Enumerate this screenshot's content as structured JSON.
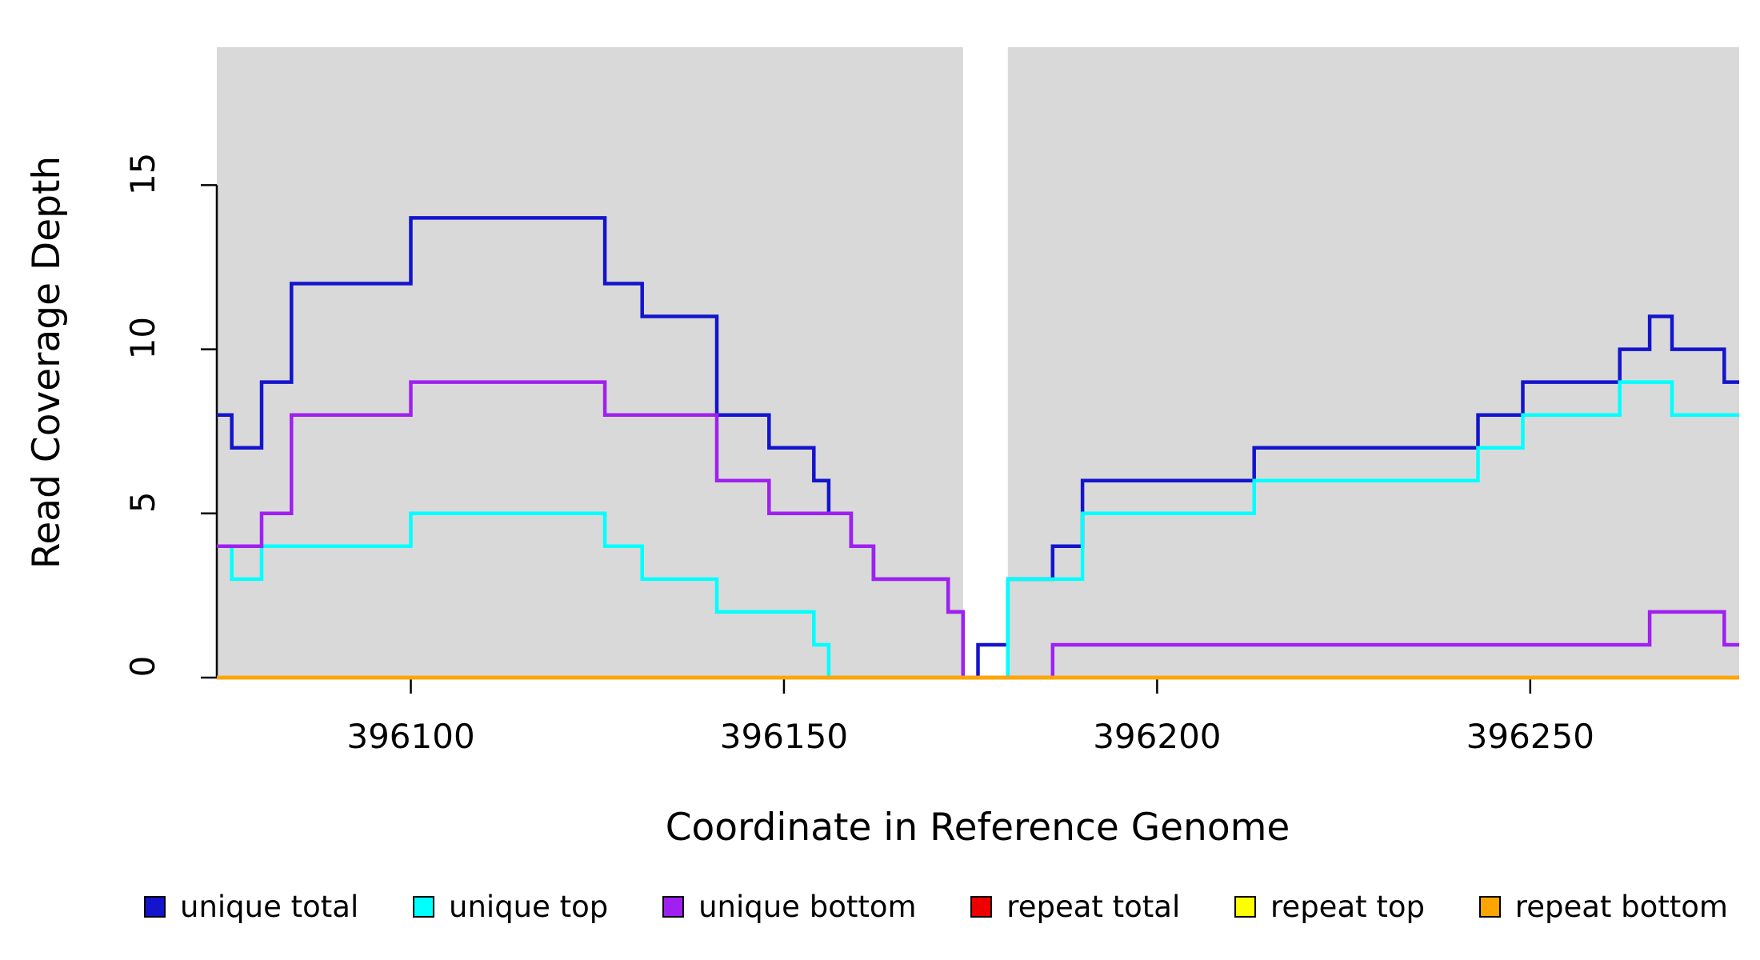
{
  "chart_data": {
    "type": "line",
    "subtype": "step-coverage-plot",
    "title": "",
    "xlabel": "Coordinate in Reference Genome",
    "ylabel": "Read Coverage Depth",
    "xlim": [
      396074,
      396278
    ],
    "ylim": [
      0,
      19.2
    ],
    "x_ticks": [
      396100,
      396150,
      396200,
      396250
    ],
    "y_ticks": [
      0,
      5,
      10,
      15
    ],
    "grid": false,
    "legend_position": "bottom",
    "background_color": "#ffffff",
    "shading_color": "#d9d9d9",
    "shaded_regions": [
      [
        396074,
        396174
      ],
      [
        396180,
        396278
      ]
    ],
    "series": [
      {
        "name": "unique total",
        "color": "#1414cc",
        "steps": [
          [
            396074,
            8
          ],
          [
            396076,
            7
          ],
          [
            396080,
            9
          ],
          [
            396084,
            12
          ],
          [
            396100,
            14
          ],
          [
            396126,
            12
          ],
          [
            396131,
            11
          ],
          [
            396141,
            8
          ],
          [
            396148,
            7
          ],
          [
            396154,
            6
          ],
          [
            396156,
            5
          ],
          [
            396159,
            4
          ],
          [
            396162,
            3
          ],
          [
            396172,
            2
          ],
          [
            396174,
            0
          ],
          [
            396176,
            1
          ],
          [
            396180,
            3
          ],
          [
            396186,
            4
          ],
          [
            396190,
            6
          ],
          [
            396213,
            7
          ],
          [
            396243,
            8
          ],
          [
            396249,
            9
          ],
          [
            396262,
            10
          ],
          [
            396266,
            11
          ],
          [
            396269,
            10
          ],
          [
            396276,
            9
          ]
        ]
      },
      {
        "name": "unique top",
        "color": "#00ffff",
        "steps": [
          [
            396074,
            4
          ],
          [
            396076,
            3
          ],
          [
            396080,
            4
          ],
          [
            396100,
            5
          ],
          [
            396126,
            4
          ],
          [
            396131,
            3
          ],
          [
            396141,
            2
          ],
          [
            396154,
            1
          ],
          [
            396156,
            0
          ],
          [
            396180,
            3
          ],
          [
            396190,
            5
          ],
          [
            396213,
            6
          ],
          [
            396243,
            7
          ],
          [
            396249,
            8
          ],
          [
            396262,
            9
          ],
          [
            396269,
            8
          ]
        ]
      },
      {
        "name": "unique bottom",
        "color": "#a020f0",
        "steps": [
          [
            396074,
            4
          ],
          [
            396080,
            5
          ],
          [
            396084,
            8
          ],
          [
            396100,
            9
          ],
          [
            396126,
            8
          ],
          [
            396141,
            6
          ],
          [
            396148,
            5
          ],
          [
            396159,
            4
          ],
          [
            396162,
            3
          ],
          [
            396172,
            2
          ],
          [
            396174,
            0
          ],
          [
            396186,
            1
          ],
          [
            396266,
            2
          ],
          [
            396276,
            1
          ]
        ]
      },
      {
        "name": "repeat total",
        "color": "#ee0000",
        "steps": [
          [
            396074,
            0
          ]
        ]
      },
      {
        "name": "repeat top",
        "color": "#ffff00",
        "steps": [
          [
            396074,
            0
          ]
        ]
      },
      {
        "name": "repeat bottom",
        "color": "#ffa500",
        "steps": [
          [
            396074,
            0
          ]
        ]
      }
    ]
  }
}
